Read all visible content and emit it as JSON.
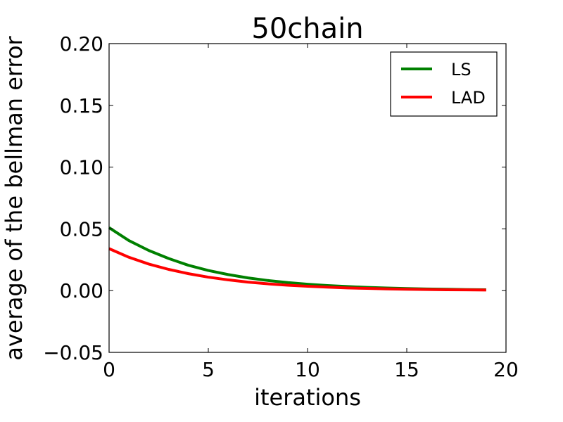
{
  "chart_data": {
    "type": "line",
    "title": "50chain",
    "xlabel": "iterations",
    "ylabel": "average of the bellman error",
    "xlim": [
      0,
      20
    ],
    "ylim": [
      -0.05,
      0.2
    ],
    "xticks": [
      0,
      5,
      10,
      15,
      20
    ],
    "xtick_labels": [
      "0",
      "5",
      "10",
      "15",
      "20"
    ],
    "yticks": [
      -0.05,
      0.0,
      0.05,
      0.1,
      0.15,
      0.2
    ],
    "ytick_labels": [
      "−0.05",
      "0.00",
      "0.05",
      "0.10",
      "0.15",
      "0.20"
    ],
    "grid": false,
    "legend_position": "top-right",
    "x": [
      0,
      1,
      2,
      3,
      4,
      5,
      6,
      7,
      8,
      9,
      10,
      11,
      12,
      13,
      14,
      15,
      16,
      17,
      18,
      19
    ],
    "series": [
      {
        "name": "LS",
        "color": "#008000",
        "values": [
          0.051,
          0.0405,
          0.0325,
          0.026,
          0.0205,
          0.0163,
          0.013,
          0.0103,
          0.0082,
          0.0065,
          0.0052,
          0.0041,
          0.0033,
          0.0026,
          0.0021,
          0.0017,
          0.0013,
          0.0011,
          0.0008,
          0.0007
        ]
      },
      {
        "name": "LAD",
        "color": "#ff0000",
        "values": [
          0.034,
          0.027,
          0.0215,
          0.0172,
          0.0137,
          0.0109,
          0.0087,
          0.0069,
          0.0055,
          0.0044,
          0.0035,
          0.0028,
          0.0022,
          0.0018,
          0.0014,
          0.0011,
          0.0009,
          0.0007,
          0.0006,
          0.0005
        ]
      }
    ]
  }
}
